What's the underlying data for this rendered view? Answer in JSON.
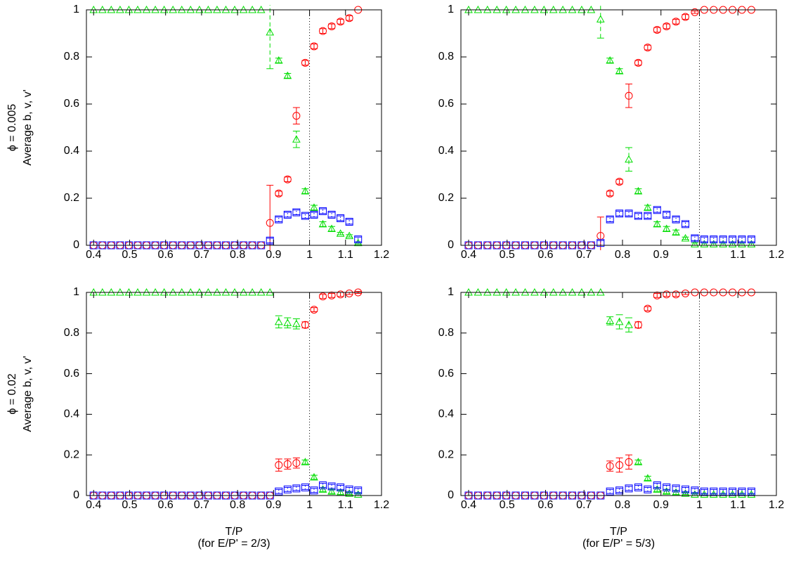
{
  "chart_data": [
    {
      "type": "scatter",
      "ylabel": [
        "ϕ = 0.005",
        "Average b, v, v'"
      ],
      "x": [
        0.4,
        0.4245,
        0.449,
        0.4735,
        0.498,
        0.5225,
        0.547,
        0.5715,
        0.596,
        0.6205,
        0.645,
        0.6695,
        0.694,
        0.7185,
        0.743,
        0.7675,
        0.792,
        0.8165,
        0.841,
        0.8655,
        0.89,
        0.9145,
        0.939,
        0.9635,
        0.988,
        1.0125,
        1.037,
        1.0615,
        1.086,
        1.1105,
        1.135
      ],
      "xlim": [
        0.38,
        1.2
      ],
      "ylim": [
        0,
        1
      ],
      "xticks": [
        0.4,
        0.5,
        0.6,
        0.7,
        0.8,
        0.9,
        1,
        1.1,
        1.2
      ],
      "yticks": [
        0,
        0.2,
        0.4,
        0.6,
        0.8,
        1
      ],
      "vline": 1,
      "series": [
        {
          "color": "#ff0000",
          "marker": "circle",
          "error_style": "solid",
          "values": [
            0,
            0,
            0,
            0,
            0,
            0,
            0,
            0,
            0,
            0,
            0,
            0,
            0,
            0,
            0,
            0,
            0,
            0,
            0,
            0,
            0.095,
            0.22,
            0.28,
            0.55,
            0.775,
            0.845,
            0.91,
            0.93,
            0.95,
            0.965,
            1.0
          ],
          "errors": [
            0,
            0,
            0,
            0,
            0,
            0,
            0,
            0,
            0,
            0,
            0,
            0,
            0,
            0,
            0,
            0,
            0,
            0,
            0,
            0,
            0.16,
            0.01,
            0.01,
            0.035,
            0.01,
            0.01,
            0.01,
            0.01,
            0.01,
            0.01,
            0
          ]
        },
        {
          "color": "#00dd00",
          "marker": "triangle",
          "error_style": "dashed",
          "values": [
            1,
            1,
            1,
            1,
            1,
            1,
            1,
            1,
            1,
            1,
            1,
            1,
            1,
            1,
            1,
            1,
            1,
            1,
            1,
            1,
            0.905,
            0.785,
            0.72,
            0.45,
            0.23,
            0.16,
            0.09,
            0.07,
            0.05,
            0.04,
            0.01
          ],
          "errors": [
            0,
            0,
            0,
            0,
            0,
            0,
            0,
            0,
            0,
            0,
            0,
            0,
            0,
            0,
            0,
            0,
            0,
            0,
            0,
            0,
            0.155,
            0.01,
            0.01,
            0.035,
            0.01,
            0.01,
            0.01,
            0.01,
            0.005,
            0.005,
            0.005
          ]
        },
        {
          "color": "#0000ff",
          "marker": "square",
          "error_style": "dotted",
          "values": [
            0,
            0,
            0,
            0,
            0,
            0,
            0,
            0,
            0,
            0,
            0,
            0,
            0,
            0,
            0,
            0,
            0,
            0,
            0,
            0,
            0.02,
            0.11,
            0.13,
            0.14,
            0.125,
            0.13,
            0.145,
            0.13,
            0.115,
            0.1,
            0.025
          ],
          "errors": [
            0,
            0,
            0,
            0,
            0,
            0,
            0,
            0,
            0,
            0,
            0,
            0,
            0,
            0,
            0,
            0,
            0,
            0,
            0,
            0,
            0.01,
            0.01,
            0.01,
            0.01,
            0.01,
            0.01,
            0.01,
            0.01,
            0.01,
            0.01,
            0.01
          ]
        }
      ]
    },
    {
      "type": "scatter",
      "x": [
        0.4,
        0.4245,
        0.449,
        0.4735,
        0.498,
        0.5225,
        0.547,
        0.5715,
        0.596,
        0.6205,
        0.645,
        0.6695,
        0.694,
        0.7185,
        0.743,
        0.7675,
        0.792,
        0.8165,
        0.841,
        0.8655,
        0.89,
        0.9145,
        0.939,
        0.9635,
        0.988,
        1.0125,
        1.037,
        1.0615,
        1.086,
        1.1105,
        1.135
      ],
      "xlim": [
        0.38,
        1.2
      ],
      "ylim": [
        0,
        1
      ],
      "xticks": [
        0.4,
        0.5,
        0.6,
        0.7,
        0.8,
        0.9,
        1,
        1.1,
        1.2
      ],
      "yticks": [
        0,
        0.2,
        0.4,
        0.6,
        0.8,
        1
      ],
      "vline": 1,
      "series": [
        {
          "color": "#ff0000",
          "marker": "circle",
          "error_style": "solid",
          "values": [
            0,
            0,
            0,
            0,
            0,
            0,
            0,
            0,
            0,
            0,
            0,
            0,
            0,
            0,
            0.04,
            0.22,
            0.27,
            0.635,
            0.775,
            0.84,
            0.915,
            0.93,
            0.95,
            0.97,
            0.99,
            1,
            1,
            1,
            1,
            1,
            1
          ],
          "errors": [
            0,
            0,
            0,
            0,
            0,
            0,
            0,
            0,
            0,
            0,
            0,
            0,
            0,
            0,
            0.08,
            0.01,
            0.01,
            0.05,
            0.01,
            0.01,
            0.01,
            0.01,
            0.01,
            0.01,
            0.005,
            0,
            0,
            0,
            0,
            0,
            0
          ]
        },
        {
          "color": "#00dd00",
          "marker": "triangle",
          "error_style": "dashed",
          "values": [
            1,
            1,
            1,
            1,
            1,
            1,
            1,
            1,
            1,
            1,
            1,
            1,
            1,
            1,
            0.96,
            0.785,
            0.74,
            0.365,
            0.23,
            0.16,
            0.09,
            0.07,
            0.055,
            0.03,
            0.005,
            0.005,
            0.005,
            0.005,
            0.005,
            0.005,
            0.005
          ],
          "errors": [
            0,
            0,
            0,
            0,
            0,
            0,
            0,
            0,
            0,
            0,
            0,
            0,
            0,
            0,
            0.08,
            0.01,
            0.01,
            0.05,
            0.01,
            0.01,
            0.01,
            0.01,
            0.01,
            0.005,
            0.005,
            0.005,
            0.005,
            0.005,
            0.005,
            0.005,
            0.005
          ]
        },
        {
          "color": "#0000ff",
          "marker": "square",
          "error_style": "dotted",
          "values": [
            0,
            0,
            0,
            0,
            0,
            0,
            0,
            0,
            0,
            0,
            0,
            0,
            0,
            0,
            0.01,
            0.11,
            0.135,
            0.135,
            0.125,
            0.125,
            0.15,
            0.13,
            0.11,
            0.09,
            0.03,
            0.025,
            0.025,
            0.025,
            0.025,
            0.025,
            0.025
          ],
          "errors": [
            0,
            0,
            0,
            0,
            0,
            0,
            0,
            0,
            0,
            0,
            0,
            0,
            0,
            0,
            0.01,
            0.01,
            0.01,
            0.01,
            0.01,
            0.01,
            0.01,
            0.01,
            0.01,
            0.01,
            0.01,
            0.01,
            0.01,
            0.01,
            0.01,
            0.01,
            0.01
          ]
        }
      ]
    },
    {
      "type": "scatter",
      "ylabel": [
        "ϕ = 0.02",
        "Average b, v, v'"
      ],
      "xlabel": [
        "T/P",
        "(for E/P' = 2/3)"
      ],
      "x": [
        0.4,
        0.4245,
        0.449,
        0.4735,
        0.498,
        0.5225,
        0.547,
        0.5715,
        0.596,
        0.6205,
        0.645,
        0.6695,
        0.694,
        0.7185,
        0.743,
        0.7675,
        0.792,
        0.8165,
        0.841,
        0.8655,
        0.89,
        0.9145,
        0.939,
        0.9635,
        0.988,
        1.0125,
        1.037,
        1.0615,
        1.086,
        1.1105,
        1.135
      ],
      "xlim": [
        0.38,
        1.2
      ],
      "ylim": [
        0,
        1
      ],
      "xticks": [
        0.4,
        0.5,
        0.6,
        0.7,
        0.8,
        0.9,
        1,
        1.1,
        1.2
      ],
      "yticks": [
        0,
        0.2,
        0.4,
        0.6,
        0.8,
        1
      ],
      "vline": 1,
      "series": [
        {
          "color": "#ff0000",
          "marker": "circle",
          "error_style": "solid",
          "values": [
            0,
            0,
            0,
            0,
            0,
            0,
            0,
            0,
            0,
            0,
            0,
            0,
            0,
            0,
            0,
            0,
            0,
            0,
            0,
            0,
            0,
            0.15,
            0.155,
            0.16,
            0.84,
            0.915,
            0.98,
            0.985,
            0.99,
            0.995,
            1.0
          ],
          "errors": [
            0,
            0,
            0,
            0,
            0,
            0,
            0,
            0,
            0,
            0,
            0,
            0,
            0,
            0,
            0,
            0,
            0,
            0,
            0,
            0,
            0,
            0.03,
            0.025,
            0.025,
            0.015,
            0.01,
            0.01,
            0.01,
            0.01,
            0.005,
            0.005
          ]
        },
        {
          "color": "#00dd00",
          "marker": "triangle",
          "error_style": "dashed",
          "values": [
            1,
            1,
            1,
            1,
            1,
            1,
            1,
            1,
            1,
            1,
            1,
            1,
            1,
            1,
            1,
            1,
            1,
            1,
            1,
            1,
            1,
            0.855,
            0.85,
            0.845,
            0.165,
            0.09,
            0.03,
            0.02,
            0.015,
            0.01,
            0.005
          ],
          "errors": [
            0,
            0,
            0,
            0,
            0,
            0,
            0,
            0,
            0,
            0,
            0,
            0,
            0,
            0,
            0,
            0,
            0,
            0,
            0,
            0,
            0,
            0.03,
            0.025,
            0.025,
            0.01,
            0.01,
            0.01,
            0.01,
            0.01,
            0.005,
            0.005
          ]
        },
        {
          "color": "#0000ff",
          "marker": "square",
          "error_style": "dotted",
          "values": [
            0,
            0,
            0,
            0,
            0,
            0,
            0,
            0,
            0,
            0,
            0,
            0,
            0,
            0,
            0,
            0,
            0,
            0,
            0,
            0,
            0,
            0.02,
            0.03,
            0.035,
            0.04,
            0.025,
            0.05,
            0.045,
            0.04,
            0.03,
            0.025
          ],
          "errors": [
            0,
            0,
            0,
            0,
            0,
            0,
            0,
            0,
            0,
            0,
            0,
            0,
            0,
            0,
            0,
            0,
            0,
            0,
            0,
            0,
            0,
            0.01,
            0.01,
            0.01,
            0.01,
            0.01,
            0.01,
            0.01,
            0.01,
            0.01,
            0.01
          ]
        }
      ]
    },
    {
      "type": "scatter",
      "xlabel": [
        "T/P",
        "(for E/P' = 5/3)"
      ],
      "x": [
        0.4,
        0.4245,
        0.449,
        0.4735,
        0.498,
        0.5225,
        0.547,
        0.5715,
        0.596,
        0.6205,
        0.645,
        0.6695,
        0.694,
        0.7185,
        0.743,
        0.7675,
        0.792,
        0.8165,
        0.841,
        0.8655,
        0.89,
        0.9145,
        0.939,
        0.9635,
        0.988,
        1.0125,
        1.037,
        1.0615,
        1.086,
        1.1105,
        1.135
      ],
      "xlim": [
        0.38,
        1.2
      ],
      "ylim": [
        0,
        1
      ],
      "xticks": [
        0.4,
        0.5,
        0.6,
        0.7,
        0.8,
        0.9,
        1,
        1.1,
        1.2
      ],
      "yticks": [
        0,
        0.2,
        0.4,
        0.6,
        0.8,
        1
      ],
      "vline": 1,
      "series": [
        {
          "color": "#ff0000",
          "marker": "circle",
          "error_style": "solid",
          "values": [
            0,
            0,
            0,
            0,
            0,
            0,
            0,
            0,
            0,
            0,
            0,
            0,
            0,
            0,
            0,
            0.145,
            0.15,
            0.165,
            0.84,
            0.92,
            0.985,
            0.99,
            0.99,
            0.995,
            1,
            1,
            1,
            1,
            1,
            1,
            1
          ],
          "errors": [
            0,
            0,
            0,
            0,
            0,
            0,
            0,
            0,
            0,
            0,
            0,
            0,
            0,
            0,
            0,
            0.025,
            0.035,
            0.035,
            0.015,
            0.01,
            0.01,
            0.01,
            0.01,
            0.005,
            0,
            0,
            0,
            0,
            0,
            0,
            0
          ]
        },
        {
          "color": "#00dd00",
          "marker": "triangle",
          "error_style": "dashed",
          "values": [
            1,
            1,
            1,
            1,
            1,
            1,
            1,
            1,
            1,
            1,
            1,
            1,
            1,
            1,
            1,
            0.86,
            0.855,
            0.84,
            0.165,
            0.085,
            0.03,
            0.02,
            0.015,
            0.01,
            0.005,
            0.005,
            0.005,
            0.005,
            0.005,
            0.005,
            0.005
          ],
          "errors": [
            0,
            0,
            0,
            0,
            0,
            0,
            0,
            0,
            0,
            0,
            0,
            0,
            0,
            0,
            0,
            0.02,
            0.035,
            0.035,
            0.01,
            0.01,
            0.01,
            0.01,
            0.01,
            0.005,
            0.005,
            0.005,
            0.005,
            0.005,
            0.005,
            0.005,
            0.005
          ]
        },
        {
          "color": "#0000ff",
          "marker": "square",
          "error_style": "dotted",
          "values": [
            0,
            0,
            0,
            0,
            0,
            0,
            0,
            0,
            0,
            0,
            0,
            0,
            0,
            0,
            0,
            0.02,
            0.025,
            0.035,
            0.04,
            0.03,
            0.05,
            0.04,
            0.035,
            0.03,
            0.025,
            0.02,
            0.02,
            0.02,
            0.02,
            0.02,
            0.02
          ],
          "errors": [
            0,
            0,
            0,
            0,
            0,
            0,
            0,
            0,
            0,
            0,
            0,
            0,
            0,
            0,
            0,
            0.01,
            0.01,
            0.01,
            0.01,
            0.01,
            0.01,
            0.01,
            0.01,
            0.01,
            0.01,
            0.01,
            0.01,
            0.01,
            0.01,
            0.01,
            0.01
          ]
        }
      ]
    }
  ]
}
